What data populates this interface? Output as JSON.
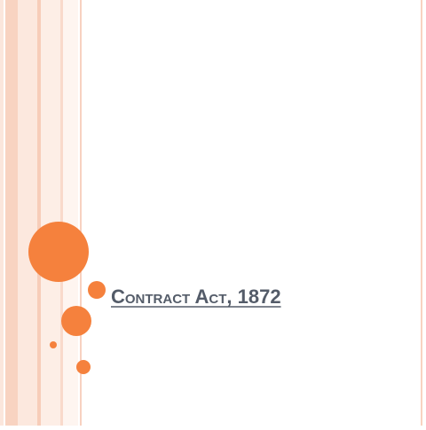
{
  "slide": {
    "title": "Contract Act, 1872"
  }
}
